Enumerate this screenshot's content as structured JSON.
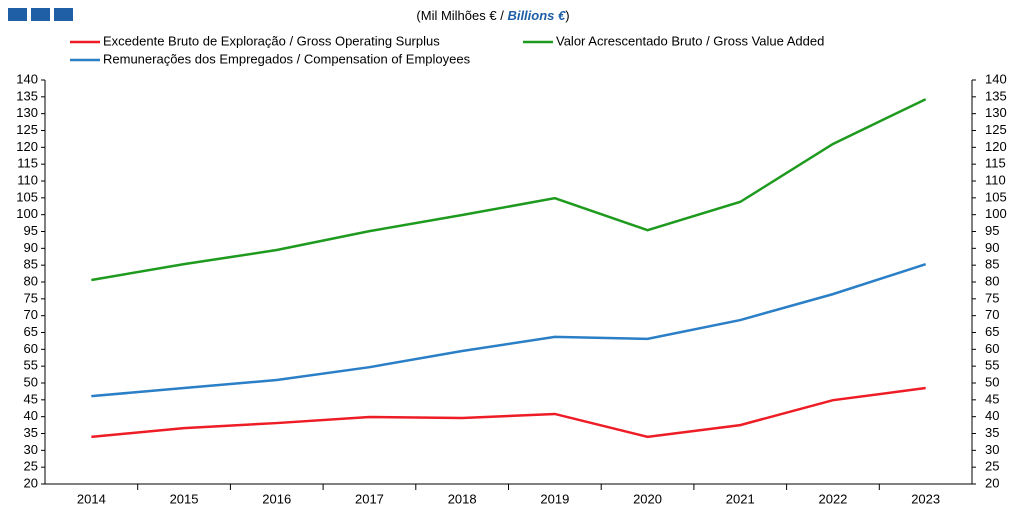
{
  "chart_data": {
    "type": "line",
    "title_parts": [
      "(Mil Milhões € / ",
      "Billions €",
      ")"
    ],
    "categories": [
      "2014",
      "2015",
      "2016",
      "2017",
      "2018",
      "2019",
      "2020",
      "2021",
      "2022",
      "2023"
    ],
    "series": [
      {
        "name": "Excedente Bruto de Exploração / Gross Operating Surplus",
        "color": "#ee1c25",
        "values": [
          34,
          36.6,
          38.1,
          39.9,
          39.6,
          40.8,
          34,
          37.5,
          44.9,
          48.5
        ]
      },
      {
        "name": "Valor Acrescentado Bruto / Gross Value Added",
        "color": "#1e9a1e",
        "values": [
          80.6,
          85.3,
          89.5,
          95.1,
          99.9,
          104.9,
          95.4,
          103.8,
          121,
          134.3
        ]
      },
      {
        "name": "Remunerações dos Empregados / Compensation of Employees",
        "color": "#2a7fc6",
        "values": [
          46.1,
          48.5,
          50.9,
          54.7,
          59.5,
          63.7,
          63.1,
          68.7,
          76.4,
          85.3
        ]
      }
    ],
    "ylim": [
      20,
      140
    ],
    "yticks": [
      20,
      25,
      30,
      35,
      40,
      45,
      50,
      55,
      60,
      65,
      70,
      75,
      80,
      85,
      90,
      95,
      100,
      105,
      110,
      115,
      120,
      125,
      130,
      135,
      140
    ],
    "y2lim": [
      20,
      140
    ],
    "y2ticks": [
      20,
      25,
      30,
      35,
      40,
      45,
      50,
      55,
      60,
      65,
      70,
      75,
      80,
      85,
      90,
      95,
      100,
      105,
      110,
      115,
      120,
      125,
      130,
      135,
      140
    ],
    "grid": false
  }
}
